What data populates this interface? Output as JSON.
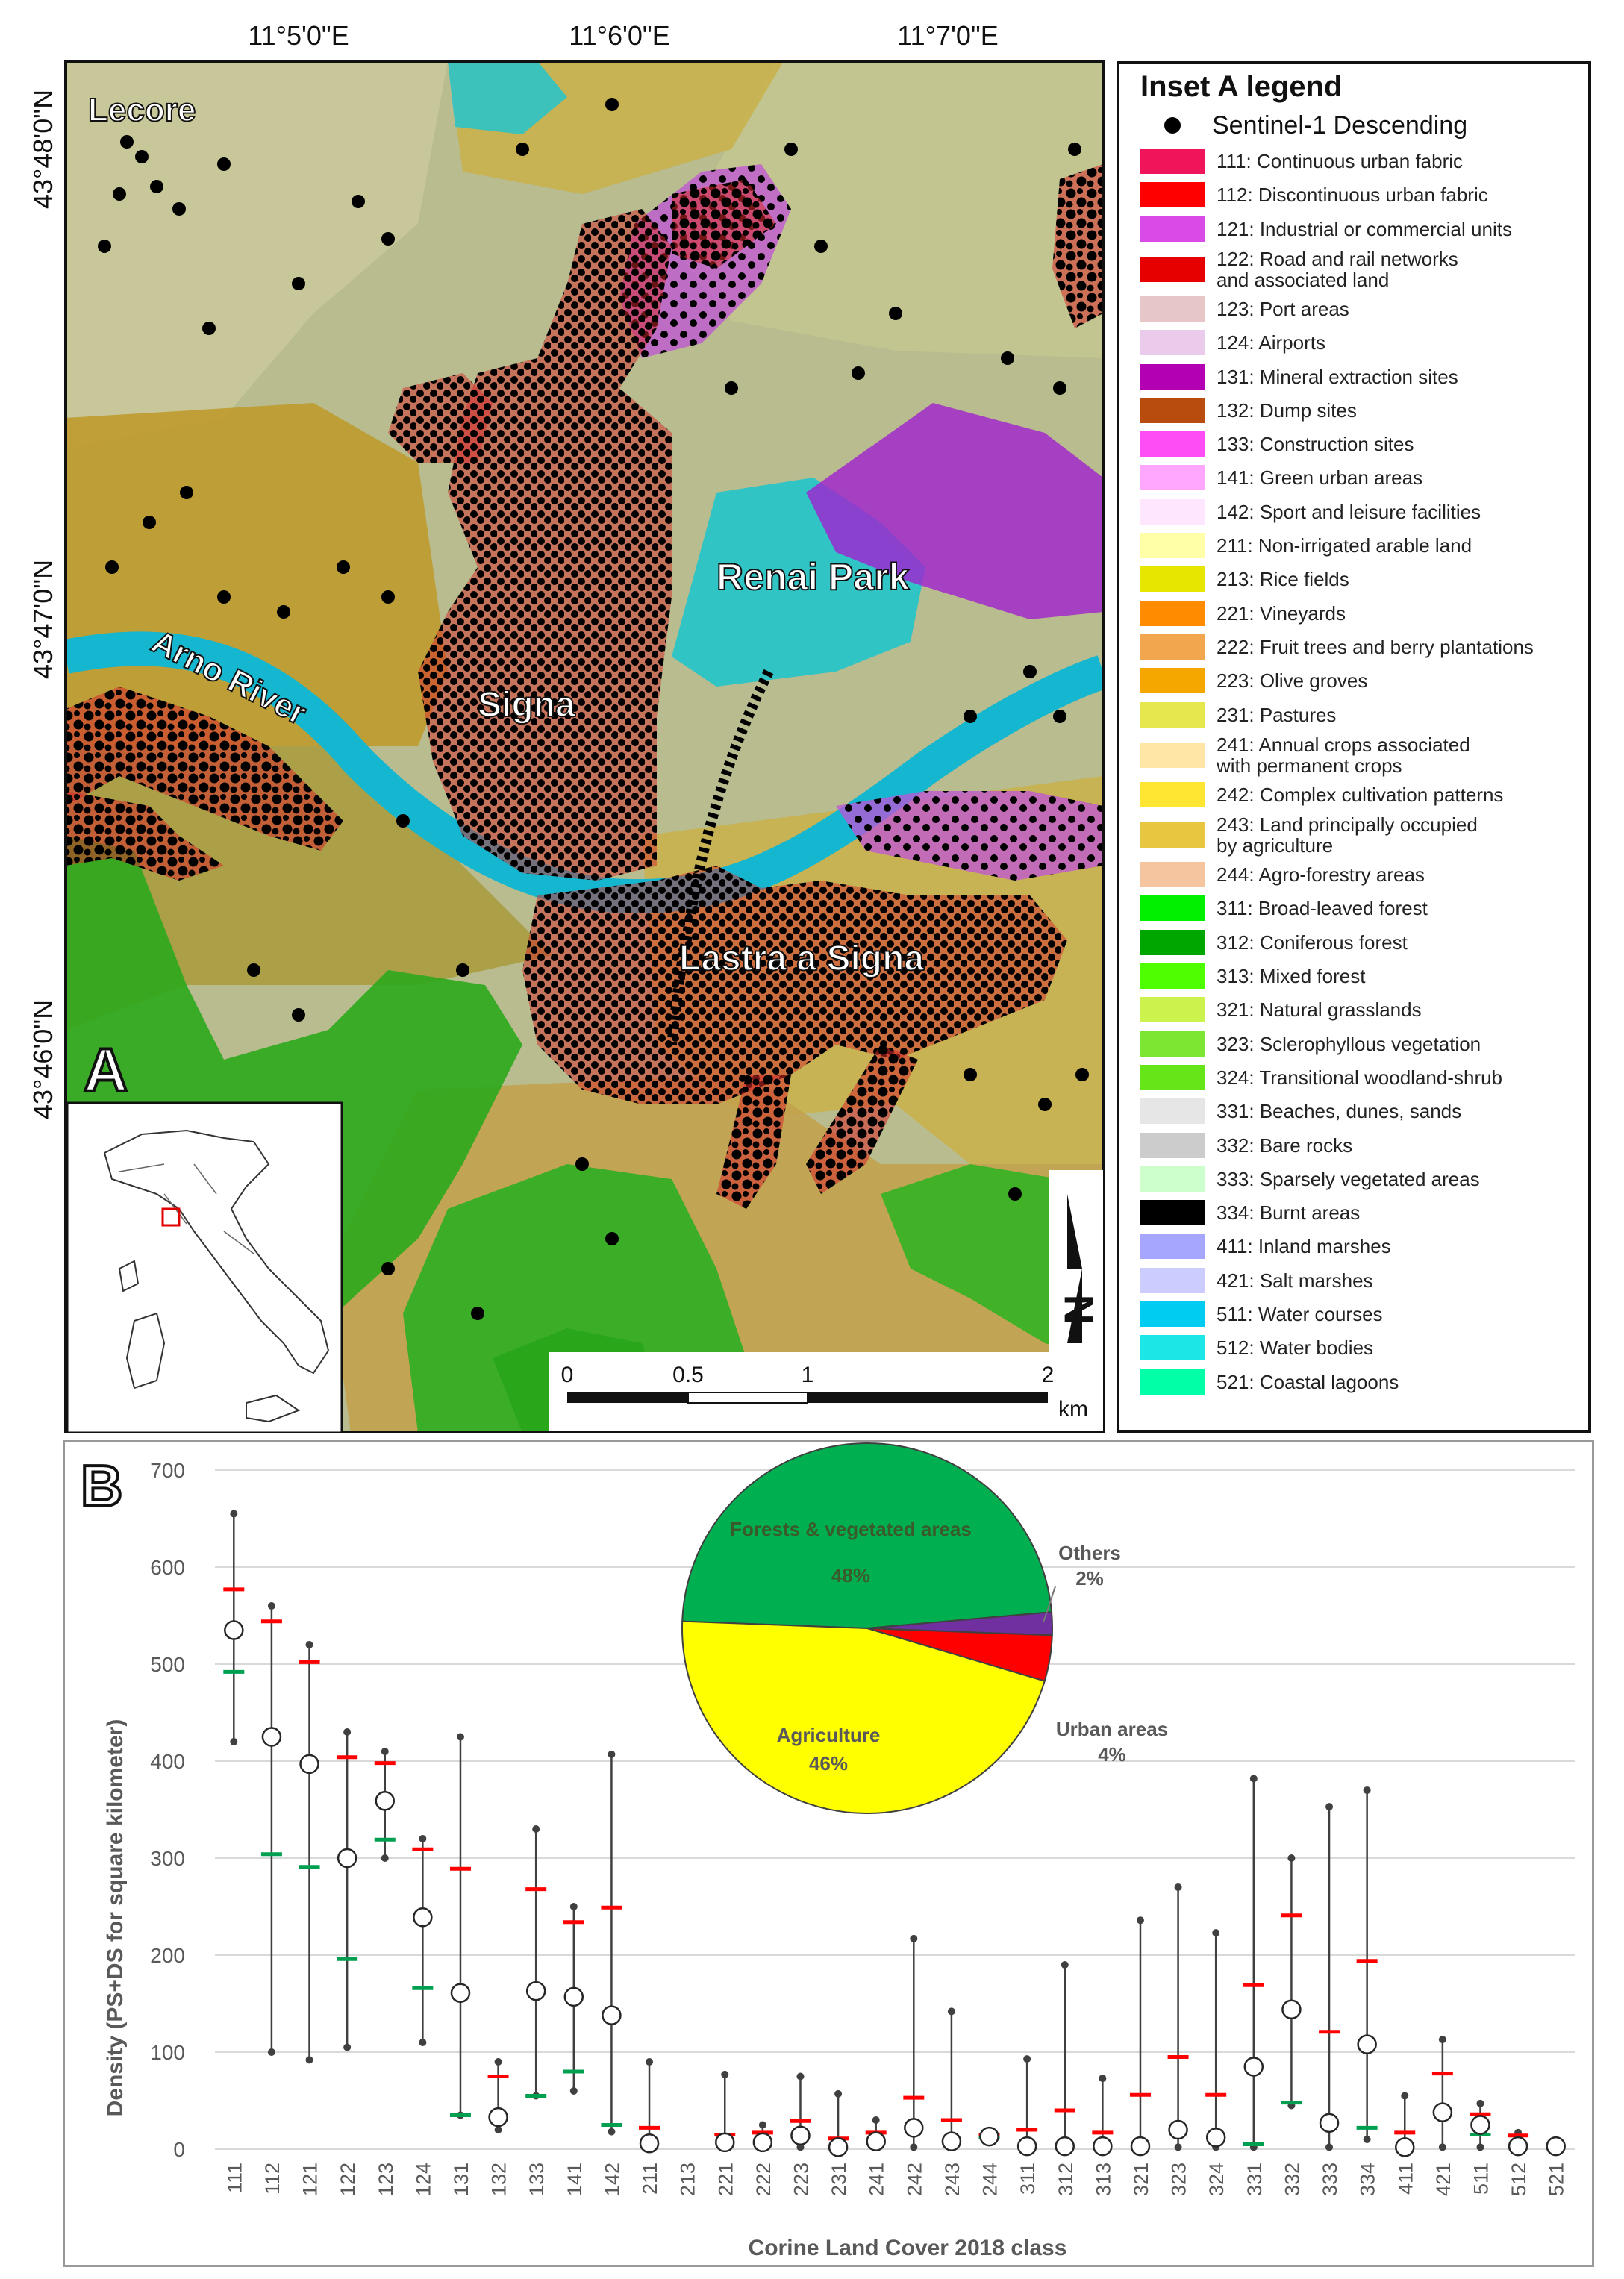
{
  "panel_a": {
    "letter": "A",
    "lon_labels": [
      "11°5'0\"E",
      "11°6'0\"E",
      "11°7'0\"E"
    ],
    "lat_labels": [
      "43°48'0\"N",
      "43°47'0\"N",
      "43°46'0\"N"
    ],
    "places": {
      "lecore": "Lecore",
      "renai_park": "Renai Park",
      "arno_river": "Arno River",
      "signa": "Signa",
      "lastra": "Lastra a Signa"
    },
    "scale": {
      "ticks": [
        "0",
        "0.5",
        "1",
        "2"
      ],
      "unit": "km"
    },
    "north_arrow": "N"
  },
  "legend": {
    "title": "Inset A legend",
    "point_label": "Sentinel-1 Descending",
    "items": [
      {
        "label": "111: Continuous urban fabric",
        "color": "#f0155a"
      },
      {
        "label": "112: Discontinuous urban fabric",
        "color": "#ff0000"
      },
      {
        "label": "121: Industrial or commercial units",
        "color": "#d94be6"
      },
      {
        "label": "122: Road and rail networks\nand associated land",
        "color": "#e60000"
      },
      {
        "label": "123: Port areas",
        "color": "#e6c6c6"
      },
      {
        "label": "124: Airports",
        "color": "#ebcbeb"
      },
      {
        "label": "131: Mineral extraction sites",
        "color": "#b300b3"
      },
      {
        "label": "132: Dump sites",
        "color": "#b84c0f"
      },
      {
        "label": "133: Construction sites",
        "color": "#ff4df5"
      },
      {
        "label": "141: Green urban areas",
        "color": "#ffa6ff"
      },
      {
        "label": "142: Sport and leisure facilities",
        "color": "#ffe6ff"
      },
      {
        "label": "211: Non-irrigated arable land",
        "color": "#ffffa8"
      },
      {
        "label": "213: Rice fields",
        "color": "#e6e600"
      },
      {
        "label": "221: Vineyards",
        "color": "#ff8c00"
      },
      {
        "label": "222: Fruit trees and berry plantations",
        "color": "#f2a64d"
      },
      {
        "label": "223: Olive groves",
        "color": "#f5a700"
      },
      {
        "label": "231: Pastures",
        "color": "#e6e64d"
      },
      {
        "label": "241: Annual crops associated\nwith permanent crops",
        "color": "#ffe6a6"
      },
      {
        "label": "242: Complex cultivation patterns",
        "color": "#ffe633"
      },
      {
        "label": "243: Land principally occupied\nby agriculture",
        "color": "#e8c640"
      },
      {
        "label": "244: Agro-forestry areas",
        "color": "#f5c5a0"
      },
      {
        "label": "311: Broad-leaved forest",
        "color": "#00f000"
      },
      {
        "label": "312: Coniferous forest",
        "color": "#00a600"
      },
      {
        "label": "313: Mixed forest",
        "color": "#4dff00"
      },
      {
        "label": "321: Natural grasslands",
        "color": "#ccf24d"
      },
      {
        "label": "323: Sclerophyllous vegetation",
        "color": "#7ce633"
      },
      {
        "label": "324: Transitional woodland-shrub",
        "color": "#66e619"
      },
      {
        "label": "331: Beaches, dunes, sands",
        "color": "#e6e6e6"
      },
      {
        "label": "332: Bare rocks",
        "color": "#cccccc"
      },
      {
        "label": "333: Sparsely vegetated areas",
        "color": "#ccffcc"
      },
      {
        "label": "334: Burnt areas",
        "color": "#000000"
      },
      {
        "label": "411: Inland marshes",
        "color": "#a6a6ff"
      },
      {
        "label": "421: Salt marshes",
        "color": "#ccccff"
      },
      {
        "label": "511: Water courses",
        "color": "#00ccf2"
      },
      {
        "label": "512: Water bodies",
        "color": "#1ce6e6"
      },
      {
        "label": "521: Coastal lagoons",
        "color": "#00ffa6"
      }
    ]
  },
  "panel_b": {
    "letter": "B"
  },
  "chart_data": [
    {
      "type": "scatter",
      "xlabel": "Corine Land Cover 2018 class",
      "ylabel": "Density (PS+DS for square kilometer)",
      "ylim": [
        0,
        700
      ],
      "yticks": [
        0,
        100,
        200,
        300,
        400,
        500,
        600,
        700
      ],
      "grid": true,
      "categories": [
        "111",
        "112",
        "121",
        "122",
        "123",
        "124",
        "131",
        "132",
        "133",
        "141",
        "142",
        "211",
        "213",
        "221",
        "222",
        "223",
        "231",
        "241",
        "242",
        "243",
        "244",
        "311",
        "312",
        "313",
        "321",
        "323",
        "324",
        "331",
        "332",
        "333",
        "334",
        "411",
        "421",
        "511",
        "512",
        "521"
      ],
      "series": [
        {
          "values": [
            535,
            425,
            397,
            300,
            359,
            239,
            161,
            33,
            163,
            157,
            138,
            6,
            null,
            7,
            7,
            14,
            2,
            8,
            22,
            8,
            13,
            3,
            3,
            3,
            3,
            20,
            12,
            85,
            144,
            27,
            108,
            2,
            38,
            25,
            3,
            3
          ]
        },
        {
          "values": [
            655,
            560,
            520,
            430,
            410,
            320,
            425,
            90,
            330,
            250,
            407,
            90,
            null,
            77,
            25,
            75,
            57,
            30,
            217,
            142,
            17,
            93,
            190,
            73,
            236,
            270,
            223,
            382,
            300,
            353,
            370,
            55,
            113,
            47,
            17,
            2
          ]
        },
        {
          "values": [
            420,
            100,
            92,
            105,
            300,
            110,
            35,
            20,
            55,
            60,
            18,
            2,
            null,
            2,
            2,
            2,
            2,
            2,
            2,
            2,
            8,
            2,
            2,
            2,
            2,
            2,
            2,
            2,
            45,
            2,
            10,
            2,
            2,
            2,
            2,
            2
          ]
        },
        {
          "values": [
            577,
            544,
            502,
            404,
            398,
            309,
            289,
            75,
            268,
            234,
            249,
            22,
            null,
            15,
            17,
            29,
            11,
            17,
            53,
            30,
            15,
            20,
            40,
            17,
            56,
            95,
            56,
            169,
            241,
            121,
            194,
            17,
            78,
            36,
            14,
            null
          ]
        },
        {
          "values": [
            492,
            304,
            291,
            196,
            319,
            166,
            35,
            null,
            55,
            80,
            25,
            null,
            null,
            null,
            null,
            null,
            null,
            null,
            null,
            null,
            12,
            null,
            null,
            null,
            null,
            null,
            null,
            5,
            48,
            null,
            22,
            null,
            null,
            15,
            null,
            null
          ]
        }
      ]
    },
    {
      "type": "pie",
      "labels": [
        "Forests & vegetated areas",
        "Others",
        "Urban areas",
        "Agriculture"
      ],
      "values": [
        48,
        2,
        4,
        46
      ],
      "value_labels": [
        "48%",
        "2%",
        "4%",
        "46%"
      ],
      "colors": [
        "#00b050",
        "#7030a0",
        "#ff0000",
        "#ffff00"
      ]
    }
  ]
}
